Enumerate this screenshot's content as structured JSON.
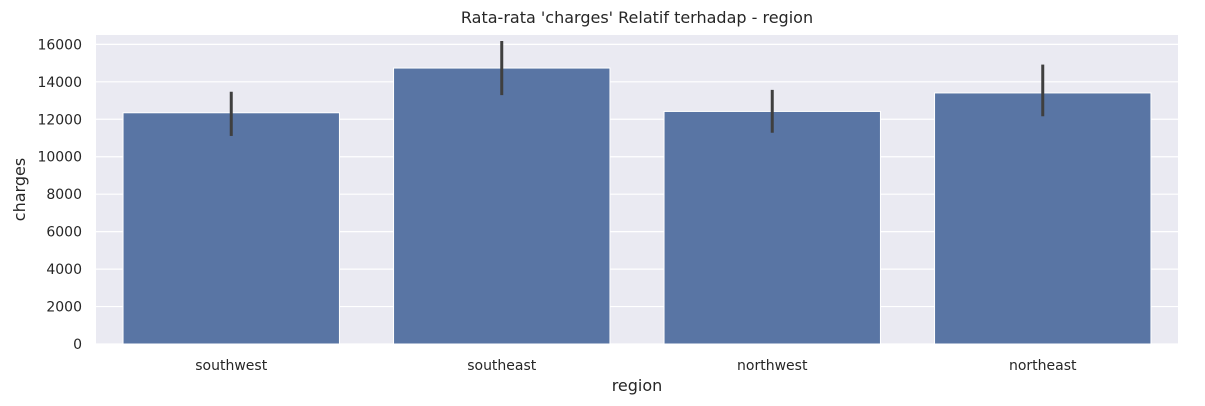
{
  "chart_data": {
    "type": "bar",
    "title": "Rata-rata 'charges' Relatif terhadap - region",
    "xlabel": "region",
    "ylabel": "charges",
    "categories": [
      "southwest",
      "southeast",
      "northwest",
      "northeast"
    ],
    "values": [
      12347,
      14735,
      12418,
      13406
    ],
    "error_low": [
      11110,
      13290,
      11280,
      12160
    ],
    "error_high": [
      13470,
      16180,
      13570,
      14920
    ],
    "ylim": [
      0,
      16500
    ],
    "yticks": [
      0,
      2000,
      4000,
      6000,
      8000,
      10000,
      12000,
      14000,
      16000
    ],
    "ytick_labels": [
      "0",
      "2000",
      "4000",
      "6000",
      "8000",
      "10000",
      "12000",
      "14000",
      "16000"
    ],
    "grid": true,
    "colors": {
      "bar": "#5975a4",
      "background": "#eaeaf2",
      "grid": "#ffffff",
      "error": "#3f3f3f"
    }
  }
}
